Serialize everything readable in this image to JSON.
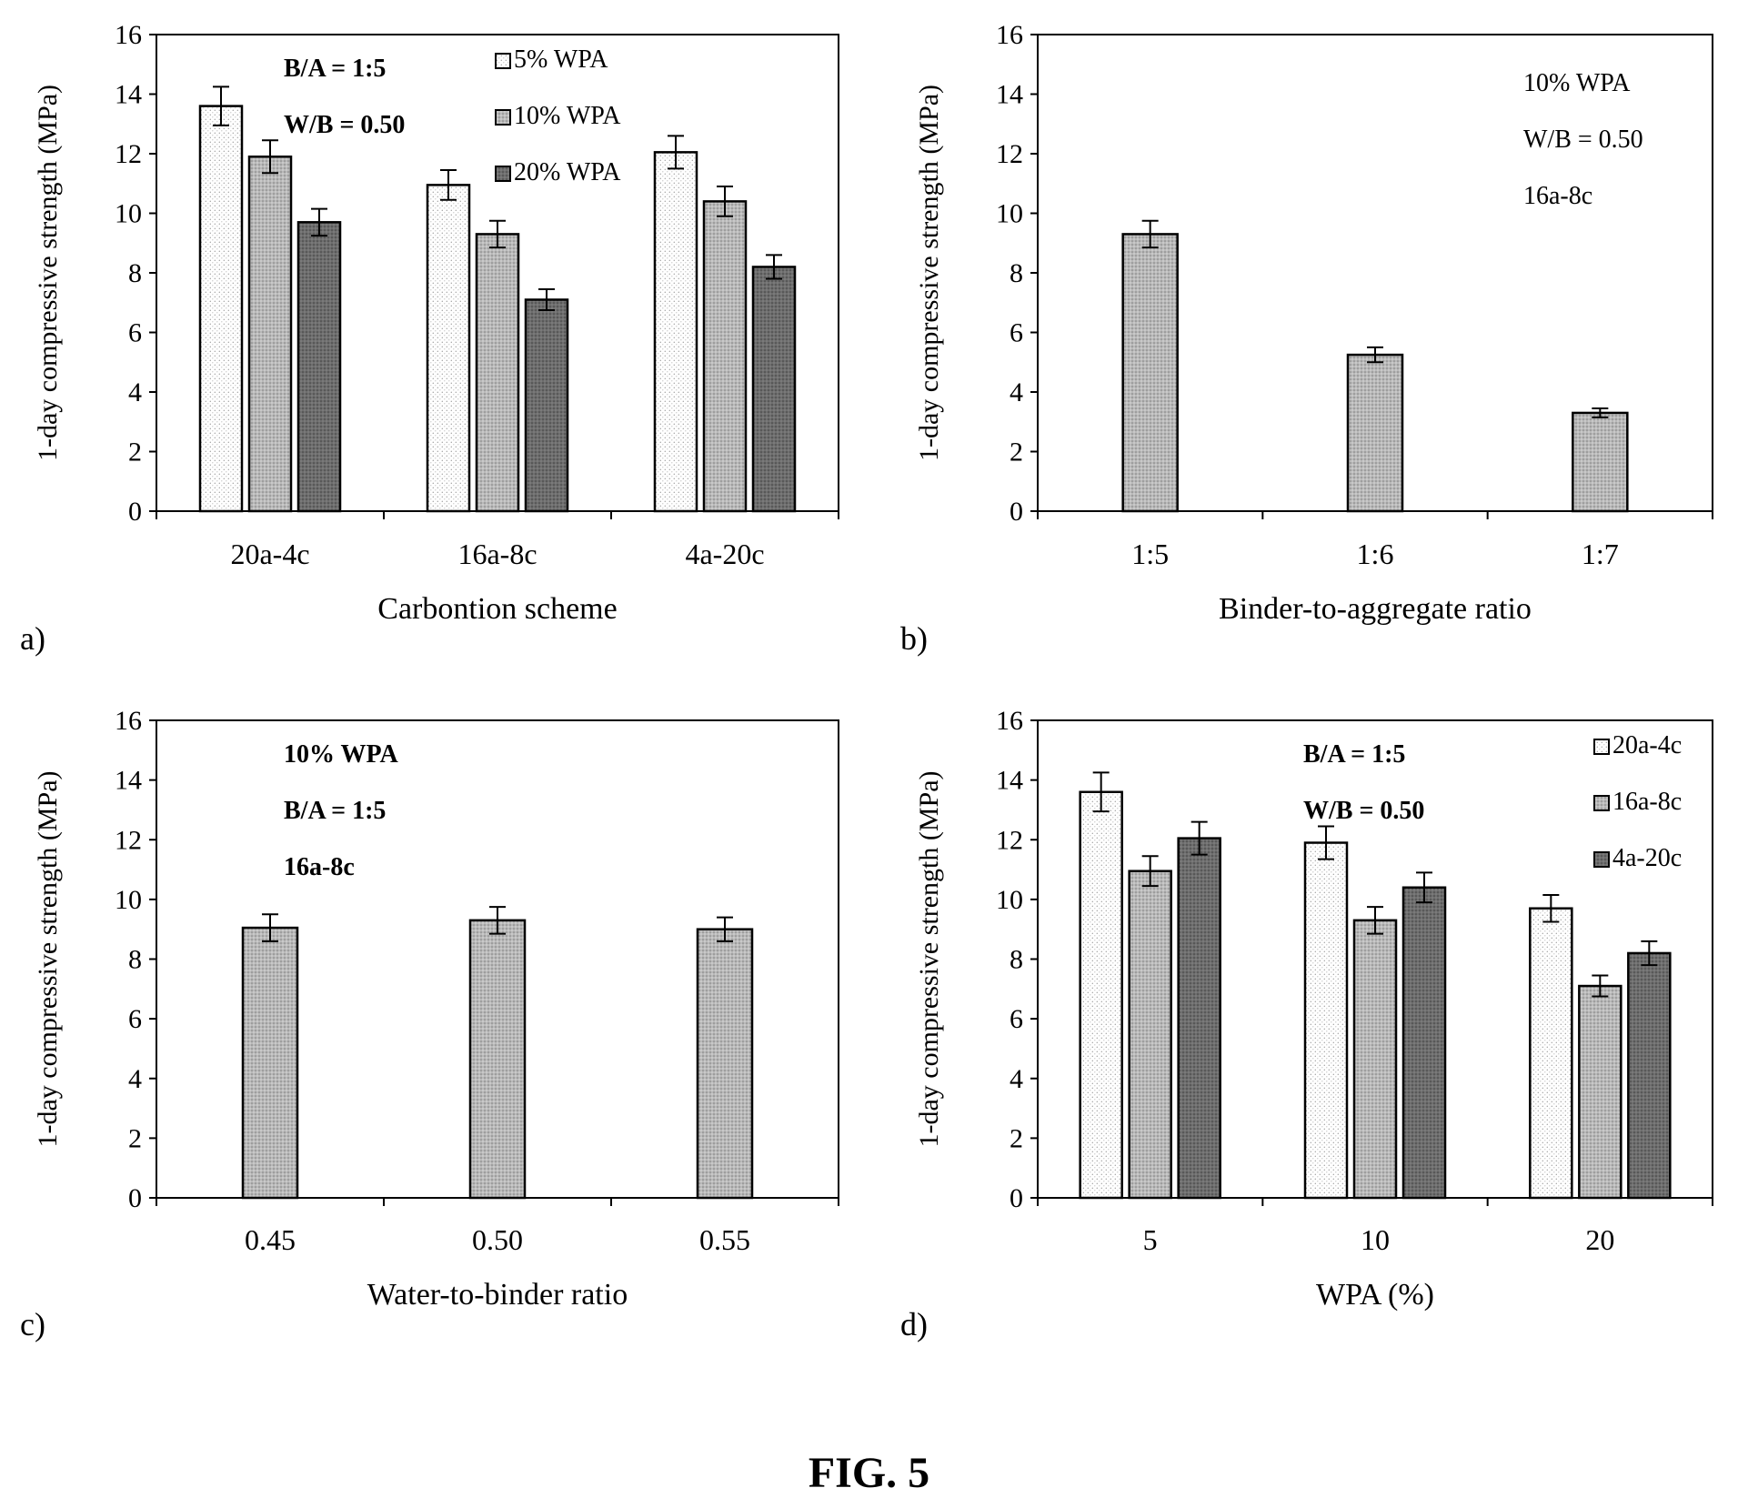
{
  "figure_caption": "FIG. 5",
  "chart_data": [
    {
      "panel": "a)",
      "type": "bar",
      "ylabel": "1-day compressive strength (MPa)",
      "xlabel": "Carbontion scheme",
      "ylim": [
        0,
        16
      ],
      "yticks": [
        0,
        2,
        4,
        6,
        8,
        10,
        12,
        14,
        16
      ],
      "categories": [
        "20a-4c",
        "16a-8c",
        "4a-20c"
      ],
      "series": [
        {
          "name": "5% WPA",
          "fill": "dots",
          "values": [
            13.6,
            10.95,
            12.05
          ],
          "errors": [
            0.65,
            0.5,
            0.55
          ]
        },
        {
          "name": "10% WPA",
          "fill": "gray",
          "values": [
            11.9,
            9.3,
            10.4
          ],
          "errors": [
            0.55,
            0.45,
            0.5
          ]
        },
        {
          "name": "20% WPA",
          "fill": "dark",
          "values": [
            9.7,
            7.1,
            8.2
          ],
          "errors": [
            0.45,
            0.35,
            0.4
          ]
        }
      ],
      "annotations": [
        {
          "text": "B/A = 1:5",
          "bold": true
        },
        {
          "text": "W/B = 0.50",
          "bold": true
        }
      ],
      "annotation_position": "top-left",
      "legend_position": "top-right",
      "grid": false
    },
    {
      "panel": "b)",
      "type": "bar",
      "ylabel": "1-day compressive strength (MPa)",
      "xlabel": "Binder-to-aggregate ratio",
      "ylim": [
        0,
        16
      ],
      "yticks": [
        0,
        2,
        4,
        6,
        8,
        10,
        12,
        14,
        16
      ],
      "categories": [
        "1:5",
        "1:6",
        "1:7"
      ],
      "series": [
        {
          "fill": "gray",
          "values": [
            9.3,
            5.25,
            3.3
          ],
          "errors": [
            0.45,
            0.25,
            0.15
          ]
        }
      ],
      "annotations": [
        {
          "text": "10% WPA",
          "bold": false
        },
        {
          "text": "W/B = 0.50",
          "bold": false
        },
        {
          "text": "16a-8c",
          "bold": false
        }
      ],
      "annotation_position": "top-right",
      "grid": false
    },
    {
      "panel": "c)",
      "type": "bar",
      "ylabel": "1-day compressive strength (MPa)",
      "xlabel": "Water-to-binder ratio",
      "ylim": [
        0,
        16
      ],
      "yticks": [
        0,
        2,
        4,
        6,
        8,
        10,
        12,
        14,
        16
      ],
      "categories": [
        "0.45",
        "0.50",
        "0.55"
      ],
      "series": [
        {
          "fill": "gray",
          "values": [
            9.05,
            9.3,
            9.0
          ],
          "errors": [
            0.45,
            0.45,
            0.4
          ]
        }
      ],
      "annotations": [
        {
          "text": "10% WPA",
          "bold": true
        },
        {
          "text": "B/A = 1:5",
          "bold": true
        },
        {
          "text": "16a-8c",
          "bold": true
        }
      ],
      "annotation_position": "top-left",
      "grid": false
    },
    {
      "panel": "d)",
      "type": "bar",
      "ylabel": "1-day compressive strength (MPa)",
      "xlabel": "WPA (%)",
      "ylim": [
        0,
        16
      ],
      "yticks": [
        0,
        2,
        4,
        6,
        8,
        10,
        12,
        14,
        16
      ],
      "categories": [
        "5",
        "10",
        "20"
      ],
      "series": [
        {
          "name": "20a-4c",
          "fill": "dots",
          "values": [
            13.6,
            11.9,
            9.7
          ],
          "errors": [
            0.65,
            0.55,
            0.45
          ]
        },
        {
          "name": "16a-8c",
          "fill": "gray",
          "values": [
            10.95,
            9.3,
            7.1
          ],
          "errors": [
            0.5,
            0.45,
            0.35
          ]
        },
        {
          "name": "4a-20c",
          "fill": "dark",
          "values": [
            12.05,
            10.4,
            8.2
          ],
          "errors": [
            0.55,
            0.5,
            0.4
          ]
        }
      ],
      "annotations": [
        {
          "text": "B/A = 1:5",
          "bold": true
        },
        {
          "text": "W/B = 0.50",
          "bold": true
        }
      ],
      "annotation_position": "top-center",
      "legend_position": "top-right",
      "grid": false
    }
  ]
}
